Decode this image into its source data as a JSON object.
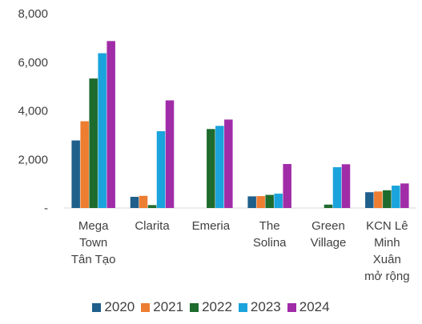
{
  "chart_data": {
    "type": "bar",
    "categories": [
      [
        "Mega",
        "Town",
        "Tân Tạo"
      ],
      [
        "Clarita"
      ],
      [
        "Emeria"
      ],
      [
        "The",
        "Solina"
      ],
      [
        "Green",
        "Village"
      ],
      [
        "KCN Lê",
        "Minh",
        "Xuân",
        "mở rộng"
      ]
    ],
    "series": [
      {
        "name": "2020",
        "color": "#1f5f8b",
        "values": [
          2780,
          460,
          0,
          480,
          0,
          650
        ]
      },
      {
        "name": "2021",
        "color": "#ed7d31",
        "values": [
          3570,
          500,
          0,
          490,
          0,
          680
        ]
      },
      {
        "name": "2022",
        "color": "#1e6b2e",
        "values": [
          5330,
          120,
          3250,
          540,
          140,
          730
        ]
      },
      {
        "name": "2023",
        "color": "#1aa3dc",
        "values": [
          6370,
          3160,
          3380,
          590,
          1680,
          920
        ]
      },
      {
        "name": "2024",
        "color": "#a02ca8",
        "values": [
          6870,
          4430,
          3640,
          1810,
          1800,
          1010
        ]
      }
    ],
    "yticks": [
      "-",
      "2,000",
      "4,000",
      "6,000",
      "8,000"
    ],
    "ylim": [
      0,
      8000
    ],
    "grid": false,
    "legend_position": "bottom"
  }
}
